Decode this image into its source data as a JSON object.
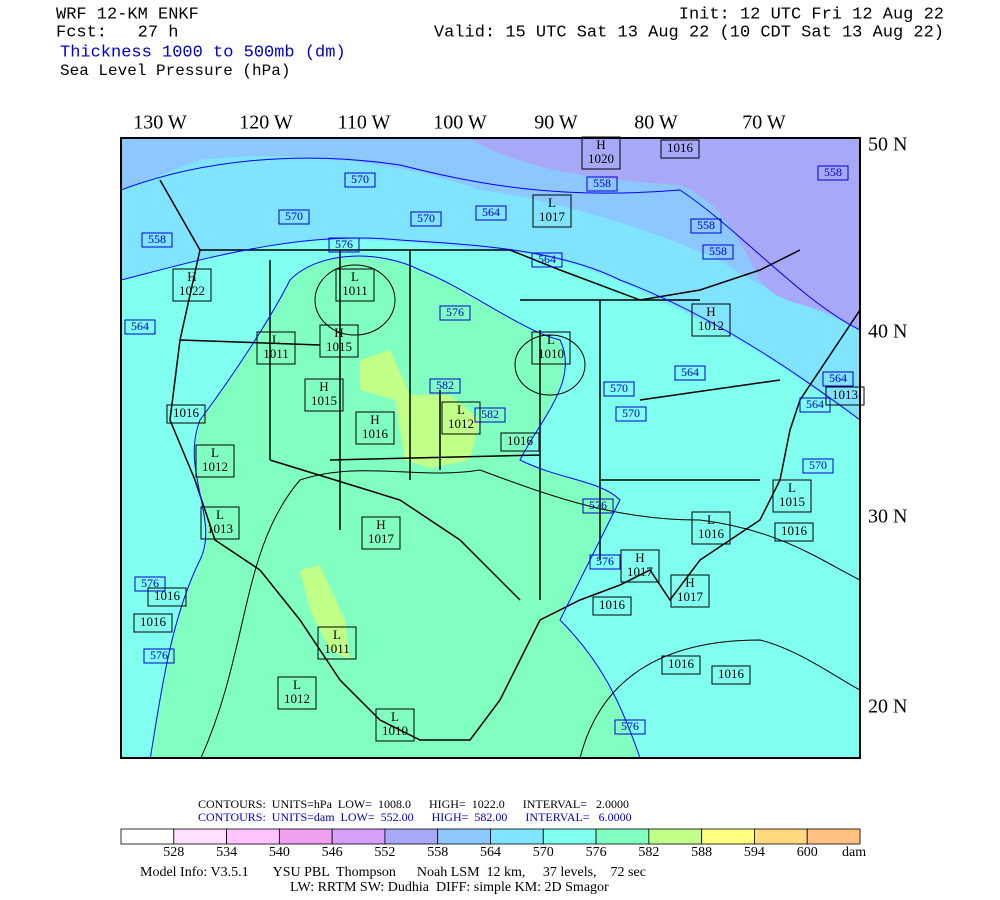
{
  "header": {
    "left": [
      "WRF 12-KM ENKF",
      "Fcst:   27 h",
      "Thickness 1000 to 500mb (dm)",
      "Sea Level Pressure (hPa)"
    ],
    "right": [
      "Init: 12 UTC Fri 12 Aug 22",
      "Valid: 15 UTC Sat 13 Aug 22 (10 CDT Sat 13 Aug 22)"
    ]
  },
  "map": {
    "lon_labels": [
      "130 W",
      "120 W",
      "110 W",
      "100 W",
      "90 W",
      "80 W",
      "70 W"
    ],
    "lat_labels": [
      "50 N",
      "40 N",
      "30 N",
      "20 N"
    ],
    "pressure_centers": [
      {
        "type": "H",
        "value": 1020
      },
      {
        "value": 1016
      },
      {
        "type": "L",
        "value": 1017
      },
      {
        "type": "H",
        "value": 1022
      },
      {
        "type": "L",
        "value": 1011
      },
      {
        "type": "L",
        "value": 1011
      },
      {
        "type": "H",
        "value": 1015
      },
      {
        "type": "L",
        "value": 1010
      },
      {
        "type": "H",
        "value": 1012
      },
      {
        "value": 1016
      },
      {
        "type": "H",
        "value": 1015
      },
      {
        "type": "H",
        "value": 1016
      },
      {
        "type": "L",
        "value": 1012
      },
      {
        "value": 1016
      },
      {
        "type": "L",
        "value": 1012
      },
      {
        "type": "L",
        "value": 1013
      },
      {
        "type": "H",
        "value": 1017
      },
      {
        "type": "L",
        "value": 1016
      },
      {
        "type": "L",
        "value": 1015
      },
      {
        "value": 1016
      },
      {
        "value": 1016
      },
      {
        "value": 1016
      },
      {
        "type": "H",
        "value": 1017
      },
      {
        "value": 1016
      },
      {
        "type": "H",
        "value": 1017
      },
      {
        "type": "L",
        "value": 1011
      },
      {
        "value": 1016
      },
      {
        "value": 1016
      },
      {
        "type": "L",
        "value": 1012
      },
      {
        "type": "L",
        "value": 1010
      },
      {
        "value": 1013
      }
    ],
    "thickness_labels": [
      570,
      558,
      558,
      570,
      570,
      564,
      558,
      576,
      558,
      558,
      564,
      564,
      576,
      582,
      582,
      570,
      570,
      564,
      564,
      564,
      570,
      576,
      576,
      576,
      576,
      576
    ]
  },
  "legend": {
    "contours": [
      "CONTOURS:  UNITS=hPa  LOW=  1008.0      HIGH=  1022.0      INTERVAL=   2.0000",
      "CONTOURS:  UNITS=dam  LOW=  552.00      HIGH=  582.00      INTERVAL=   6.0000"
    ],
    "colors": [
      "#ffffff",
      "#ffe0ff",
      "#ffc4ff",
      "#f0a0f0",
      "#d8a0f8",
      "#a8a8f8",
      "#8cc8ff",
      "#80e4ff",
      "#80fff0",
      "#80ffc0",
      "#c0ff88",
      "#ffff80",
      "#ffd880",
      "#ffc080"
    ],
    "labels": [
      528,
      534,
      540,
      546,
      552,
      558,
      564,
      570,
      576,
      582,
      588,
      594,
      600
    ],
    "unit": "dam"
  },
  "footer": [
    "Model Info: V3.5.1       YSU PBL  Thompson      Noah LSM  12 km,     37 levels,    72 sec",
    "LW: RRTM SW: Dudhia  DIFF: simple KM: 2D Smagor"
  ]
}
